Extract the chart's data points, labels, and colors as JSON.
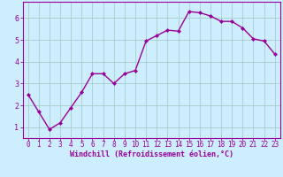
{
  "x": [
    0,
    1,
    2,
    3,
    4,
    5,
    6,
    7,
    8,
    9,
    10,
    11,
    12,
    13,
    14,
    15,
    16,
    17,
    18,
    19,
    20,
    21,
    22,
    23
  ],
  "y": [
    2.5,
    1.7,
    0.9,
    1.2,
    1.9,
    2.6,
    3.45,
    3.45,
    3.0,
    3.45,
    3.6,
    4.95,
    5.2,
    5.45,
    5.4,
    6.3,
    6.25,
    6.1,
    5.85,
    5.85,
    5.55,
    5.05,
    4.95,
    4.35
  ],
  "line_color": "#990099",
  "marker": "D",
  "marker_size": 2.0,
  "line_width": 1.0,
  "bg_color": "#cceeff",
  "grid_color": "#aacccc",
  "tick_color": "#990099",
  "xlabel": "Windchill (Refroidissement éolien,°C)",
  "xlabel_fontsize": 6.0,
  "xlabel_color": "#990099",
  "ylabel_ticks": [
    1,
    2,
    3,
    4,
    5,
    6
  ],
  "xlim": [
    -0.5,
    23.5
  ],
  "ylim": [
    0.5,
    6.75
  ],
  "xtick_labels": [
    "0",
    "1",
    "2",
    "3",
    "4",
    "5",
    "6",
    "7",
    "8",
    "9",
    "10",
    "11",
    "12",
    "13",
    "14",
    "15",
    "16",
    "17",
    "18",
    "19",
    "20",
    "21",
    "22",
    "23"
  ],
  "tick_fontsize": 5.5,
  "spine_color": "#990099"
}
